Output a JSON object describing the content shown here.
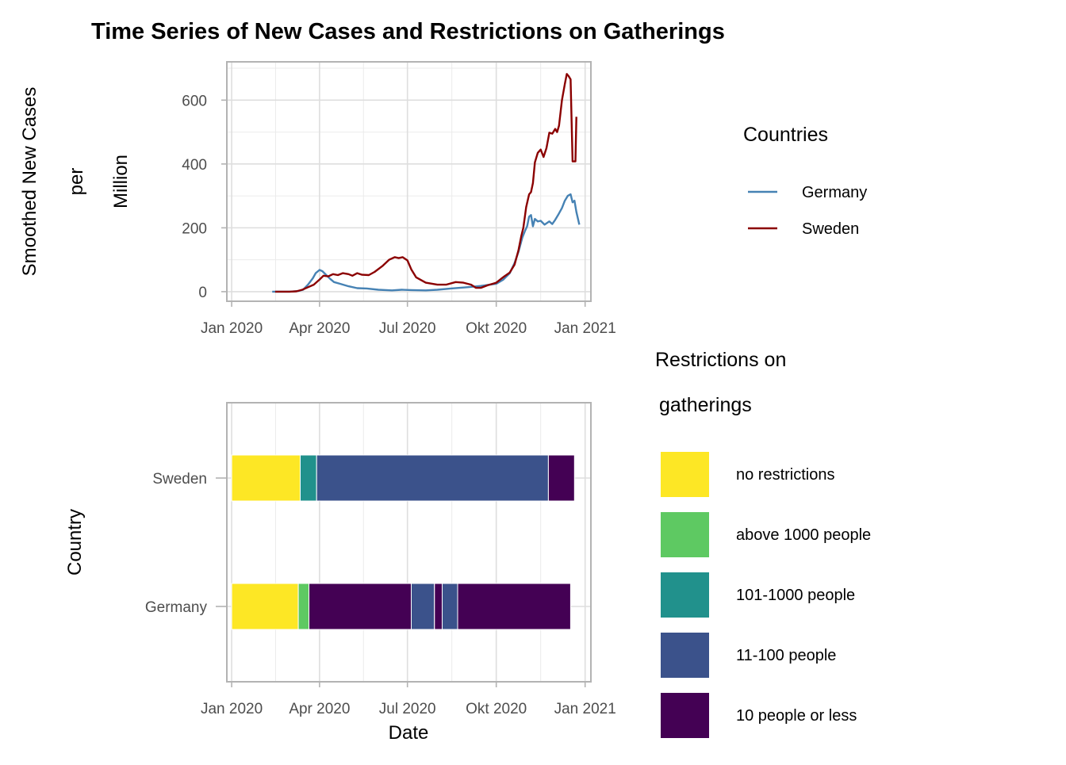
{
  "title": "Time Series of New Cases and Restrictions on Gatherings",
  "chart_data": [
    {
      "type": "line",
      "ylabel_lines": [
        "Smoothed New Cases",
        "per",
        "Million"
      ],
      "xlabel": "",
      "x_ticks": [
        {
          "date": "2020-01-01",
          "label": "Jan 2020"
        },
        {
          "date": "2020-04-01",
          "label": "Apr 2020"
        },
        {
          "date": "2020-07-01",
          "label": "Jul 2020"
        },
        {
          "date": "2020-10-01",
          "label": "Okt 2020"
        },
        {
          "date": "2021-01-01",
          "label": "Jan 2021"
        }
      ],
      "y_ticks": [
        0,
        200,
        400,
        600
      ],
      "xlim": [
        "2019-12-27",
        "2021-01-07"
      ],
      "ylim": [
        -30,
        720
      ],
      "grid": true,
      "legend": {
        "title": "Countries",
        "position": "right"
      },
      "series": [
        {
          "name": "Germany",
          "color": "#4682b4",
          "points": [
            [
              "2020-02-12",
              0
            ],
            [
              "2020-03-01",
              0
            ],
            [
              "2020-03-10",
              2
            ],
            [
              "2020-03-15",
              6
            ],
            [
              "2020-03-20",
              22
            ],
            [
              "2020-03-25",
              42
            ],
            [
              "2020-03-28",
              58
            ],
            [
              "2020-04-01",
              68
            ],
            [
              "2020-04-04",
              64
            ],
            [
              "2020-04-08",
              52
            ],
            [
              "2020-04-12",
              40
            ],
            [
              "2020-04-16",
              30
            ],
            [
              "2020-04-22",
              25
            ],
            [
              "2020-05-01",
              17
            ],
            [
              "2020-05-10",
              11
            ],
            [
              "2020-05-20",
              10
            ],
            [
              "2020-06-01",
              6
            ],
            [
              "2020-06-15",
              4
            ],
            [
              "2020-06-25",
              6
            ],
            [
              "2020-07-05",
              5
            ],
            [
              "2020-07-20",
              4
            ],
            [
              "2020-08-01",
              6
            ],
            [
              "2020-08-15",
              10
            ],
            [
              "2020-09-01",
              14
            ],
            [
              "2020-09-15",
              18
            ],
            [
              "2020-10-01",
              25
            ],
            [
              "2020-10-08",
              37
            ],
            [
              "2020-10-15",
              58
            ],
            [
              "2020-10-20",
              90
            ],
            [
              "2020-10-24",
              125
            ],
            [
              "2020-10-28",
              170
            ],
            [
              "2020-10-31",
              192
            ],
            [
              "2020-11-02",
              205
            ],
            [
              "2020-11-04",
              235
            ],
            [
              "2020-11-06",
              240
            ],
            [
              "2020-11-08",
              205
            ],
            [
              "2020-11-10",
              228
            ],
            [
              "2020-11-13",
              220
            ],
            [
              "2020-11-16",
              222
            ],
            [
              "2020-11-20",
              210
            ],
            [
              "2020-11-25",
              220
            ],
            [
              "2020-11-28",
              212
            ],
            [
              "2020-12-01",
              225
            ],
            [
              "2020-12-04",
              240
            ],
            [
              "2020-12-08",
              262
            ],
            [
              "2020-12-11",
              285
            ],
            [
              "2020-12-14",
              300
            ],
            [
              "2020-12-17",
              305
            ],
            [
              "2020-12-19",
              280
            ],
            [
              "2020-12-21",
              285
            ],
            [
              "2020-12-23",
              250
            ],
            [
              "2020-12-26",
              210
            ]
          ]
        },
        {
          "name": "Sweden",
          "color": "#8b0000",
          "points": [
            [
              "2020-02-15",
              0
            ],
            [
              "2020-03-01",
              0
            ],
            [
              "2020-03-08",
              1
            ],
            [
              "2020-03-14",
              6
            ],
            [
              "2020-03-20",
              14
            ],
            [
              "2020-03-26",
              22
            ],
            [
              "2020-04-01",
              38
            ],
            [
              "2020-04-05",
              50
            ],
            [
              "2020-04-10",
              48
            ],
            [
              "2020-04-15",
              55
            ],
            [
              "2020-04-20",
              52
            ],
            [
              "2020-04-25",
              58
            ],
            [
              "2020-05-01",
              55
            ],
            [
              "2020-05-05",
              50
            ],
            [
              "2020-05-10",
              58
            ],
            [
              "2020-05-15",
              53
            ],
            [
              "2020-05-22",
              52
            ],
            [
              "2020-05-28",
              62
            ],
            [
              "2020-06-05",
              80
            ],
            [
              "2020-06-12",
              100
            ],
            [
              "2020-06-18",
              108
            ],
            [
              "2020-06-22",
              105
            ],
            [
              "2020-06-26",
              108
            ],
            [
              "2020-07-01",
              98
            ],
            [
              "2020-07-05",
              70
            ],
            [
              "2020-07-10",
              45
            ],
            [
              "2020-07-20",
              28
            ],
            [
              "2020-08-01",
              22
            ],
            [
              "2020-08-10",
              22
            ],
            [
              "2020-08-20",
              30
            ],
            [
              "2020-08-28",
              28
            ],
            [
              "2020-09-05",
              22
            ],
            [
              "2020-09-10",
              12
            ],
            [
              "2020-09-15",
              12
            ],
            [
              "2020-09-22",
              20
            ],
            [
              "2020-10-01",
              28
            ],
            [
              "2020-10-08",
              45
            ],
            [
              "2020-10-15",
              60
            ],
            [
              "2020-10-20",
              85
            ],
            [
              "2020-10-24",
              130
            ],
            [
              "2020-10-27",
              175
            ],
            [
              "2020-10-29",
              200
            ],
            [
              "2020-11-01",
              265
            ],
            [
              "2020-11-04",
              305
            ],
            [
              "2020-11-06",
              312
            ],
            [
              "2020-11-08",
              340
            ],
            [
              "2020-11-10",
              405
            ],
            [
              "2020-11-13",
              435
            ],
            [
              "2020-11-16",
              445
            ],
            [
              "2020-11-19",
              422
            ],
            [
              "2020-11-22",
              450
            ],
            [
              "2020-11-25",
              498
            ],
            [
              "2020-11-28",
              495
            ],
            [
              "2020-12-01",
              510
            ],
            [
              "2020-12-03",
              500
            ],
            [
              "2020-12-05",
              520
            ],
            [
              "2020-12-08",
              600
            ],
            [
              "2020-12-11",
              650
            ],
            [
              "2020-12-13",
              682
            ],
            [
              "2020-12-15",
              675
            ],
            [
              "2020-12-17",
              665
            ],
            [
              "2020-12-19",
              408
            ],
            [
              "2020-12-22",
              408
            ],
            [
              "2020-12-23",
              548
            ]
          ]
        }
      ]
    },
    {
      "type": "bar",
      "orientation": "horizontal",
      "stacked": true,
      "xlabel": "Date",
      "ylabel": "Country",
      "categories": [
        "Sweden",
        "Germany"
      ],
      "x_ticks": [
        {
          "date": "2020-01-01",
          "label": "Jan 2020"
        },
        {
          "date": "2020-04-01",
          "label": "Apr 2020"
        },
        {
          "date": "2020-07-01",
          "label": "Jul 2020"
        },
        {
          "date": "2020-10-01",
          "label": "Okt 2020"
        },
        {
          "date": "2021-01-01",
          "label": "Jan 2021"
        }
      ],
      "xlim": [
        "2019-12-27",
        "2021-01-07"
      ],
      "grid": true,
      "legend": {
        "title_lines": [
          "Restrictions on",
          "gatherings"
        ],
        "position": "right"
      },
      "levels": [
        {
          "label": "no restrictions",
          "color": "#fde725"
        },
        {
          "label": "above 1000 people",
          "color": "#5ec962"
        },
        {
          "label": "101-1000 people",
          "color": "#21918c"
        },
        {
          "label": "11-100 people",
          "color": "#3b528b"
        },
        {
          "label": "10 people or less",
          "color": "#440154"
        }
      ],
      "segments": [
        {
          "country": "Sweden",
          "start": "2020-01-01",
          "end": "2020-03-12",
          "level": "no restrictions"
        },
        {
          "country": "Sweden",
          "start": "2020-03-12",
          "end": "2020-03-29",
          "level": "101-1000 people"
        },
        {
          "country": "Sweden",
          "start": "2020-03-29",
          "end": "2020-11-24",
          "level": "11-100 people"
        },
        {
          "country": "Sweden",
          "start": "2020-11-24",
          "end": "2020-12-21",
          "level": "10 people or less"
        },
        {
          "country": "Germany",
          "start": "2020-01-01",
          "end": "2020-03-10",
          "level": "no restrictions"
        },
        {
          "country": "Germany",
          "start": "2020-03-10",
          "end": "2020-03-21",
          "level": "above 1000 people"
        },
        {
          "country": "Germany",
          "start": "2020-03-21",
          "end": "2020-07-05",
          "level": "10 people or less"
        },
        {
          "country": "Germany",
          "start": "2020-07-05",
          "end": "2020-07-29",
          "level": "11-100 people"
        },
        {
          "country": "Germany",
          "start": "2020-07-29",
          "end": "2020-08-06",
          "level": "10 people or less"
        },
        {
          "country": "Germany",
          "start": "2020-08-06",
          "end": "2020-08-22",
          "level": "11-100 people"
        },
        {
          "country": "Germany",
          "start": "2020-08-22",
          "end": "2020-12-17",
          "level": "10 people or less"
        }
      ]
    }
  ]
}
